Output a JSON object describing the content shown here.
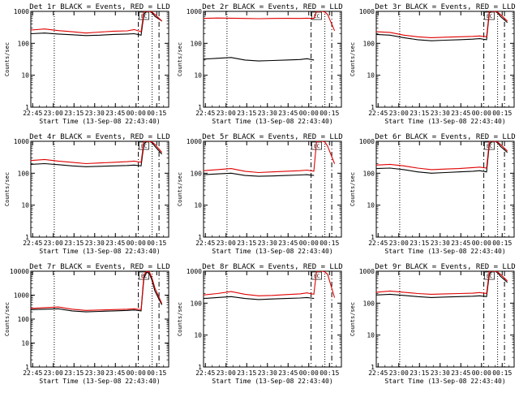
{
  "figure": {
    "xlabel": "Start Time (13-Sep-08 22:43:40)",
    "ylabel": "Counts/sec",
    "x_tick_labels": [
      "22:45",
      "23:00",
      "23:15",
      "23:30",
      "23:45",
      "00:00",
      "00:15"
    ],
    "annotation": "EC",
    "colors": {
      "events": "#000000",
      "lld": "#e00000",
      "axes": "#000000",
      "background": "#ffffff"
    }
  },
  "chart_data": [
    {
      "type": "line",
      "title": "Det 1r BLACK = Events, RED = LLD",
      "xlabel": "Start Time (13-Sep-08 22:43:40)",
      "ylabel": "Counts/sec",
      "x_unit": "minutes after 22:43:40",
      "xlim": [
        0,
        100
      ],
      "ylim": [
        1,
        1000
      ],
      "yscale": "log",
      "y_tick_labels": [
        "1",
        "10",
        "100",
        "1000"
      ],
      "series": [
        {
          "name": "BLACK = Events",
          "color": "#000000",
          "x": [
            0,
            10,
            20,
            30,
            40,
            50,
            60,
            70,
            75,
            80,
            82,
            84,
            86,
            88,
            90,
            95
          ],
          "y": [
            200,
            210,
            195,
            185,
            175,
            180,
            190,
            195,
            200,
            180,
            800,
            1000,
            1000,
            900,
            700,
            500
          ]
        },
        {
          "name": "RED = LLD",
          "color": "#e00000",
          "x": [
            0,
            10,
            20,
            30,
            40,
            50,
            60,
            70,
            75,
            80,
            82,
            84,
            86,
            88,
            90,
            95
          ],
          "y": [
            260,
            280,
            250,
            230,
            210,
            225,
            240,
            245,
            270,
            230,
            1000,
            1000,
            1000,
            950,
            800,
            500
          ]
        }
      ],
      "vlines_dotted": [
        17,
        88
      ],
      "vlines_dashed": [
        78,
        93
      ]
    },
    {
      "type": "line",
      "title": "Det 2r BLACK = Events, RED = LLD",
      "xlabel": "Start Time (13-Sep-08 22:43:40)",
      "ylabel": "Counts/sec",
      "x_unit": "minutes after 22:43:40",
      "xlim": [
        0,
        100
      ],
      "ylim": [
        1,
        1000
      ],
      "yscale": "log",
      "y_tick_labels": [
        "1",
        "10",
        "100",
        "1000"
      ],
      "series": [
        {
          "name": "BLACK = Events",
          "color": "#000000",
          "x": [
            0,
            10,
            20,
            30,
            40,
            50,
            60,
            70,
            75,
            80
          ],
          "y": [
            32,
            34,
            36,
            30,
            28,
            29,
            30,
            31,
            33,
            30
          ]
        },
        {
          "name": "RED = LLD",
          "color": "#e00000",
          "x": [
            0,
            10,
            20,
            30,
            40,
            50,
            60,
            70,
            75,
            80,
            82,
            84,
            86,
            88,
            90,
            95
          ],
          "y": [
            600,
            620,
            610,
            600,
            590,
            600,
            605,
            600,
            610,
            600,
            1000,
            1000,
            1000,
            950,
            800,
            250
          ]
        }
      ],
      "vlines_dotted": [
        17,
        88
      ],
      "vlines_dashed": [
        78,
        93
      ]
    },
    {
      "type": "line",
      "title": "Det 3r BLACK = Events, RED = LLD",
      "xlabel": "Start Time (13-Sep-08 22:43:40)",
      "ylabel": "Counts/sec",
      "x_unit": "minutes after 22:43:40",
      "xlim": [
        0,
        100
      ],
      "ylim": [
        1,
        1000
      ],
      "yscale": "log",
      "y_tick_labels": [
        "1",
        "10",
        "100",
        "1000"
      ],
      "series": [
        {
          "name": "BLACK = Events",
          "color": "#000000",
          "x": [
            0,
            10,
            20,
            30,
            40,
            50,
            60,
            70,
            75,
            80,
            82,
            84,
            86,
            88,
            90,
            95
          ],
          "y": [
            190,
            180,
            150,
            130,
            120,
            125,
            130,
            135,
            140,
            130,
            900,
            1000,
            1000,
            900,
            700,
            450
          ]
        },
        {
          "name": "RED = LLD",
          "color": "#e00000",
          "x": [
            0,
            10,
            20,
            30,
            40,
            50,
            60,
            70,
            75,
            80,
            82,
            84,
            86,
            88,
            90,
            95
          ],
          "y": [
            230,
            220,
            180,
            160,
            150,
            155,
            160,
            165,
            170,
            160,
            1000,
            1000,
            1000,
            950,
            800,
            500
          ]
        }
      ],
      "vlines_dotted": [
        17,
        88
      ],
      "vlines_dashed": [
        78,
        93
      ]
    },
    {
      "type": "line",
      "title": "Det 4r BLACK = Events, RED = LLD",
      "xlabel": "Start Time (13-Sep-08 22:43:40)",
      "ylabel": "Counts/sec",
      "x_unit": "minutes after 22:43:40",
      "xlim": [
        0,
        100
      ],
      "ylim": [
        1,
        1000
      ],
      "yscale": "log",
      "y_tick_labels": [
        "1",
        "10",
        "100",
        "1000"
      ],
      "series": [
        {
          "name": "BLACK = Events",
          "color": "#000000",
          "x": [
            0,
            10,
            20,
            30,
            40,
            50,
            60,
            70,
            75,
            80,
            82,
            84,
            86,
            88,
            90,
            95
          ],
          "y": [
            190,
            200,
            185,
            170,
            160,
            165,
            170,
            175,
            180,
            170,
            800,
            1000,
            1000,
            900,
            700,
            400
          ]
        },
        {
          "name": "RED = LLD",
          "color": "#e00000",
          "x": [
            0,
            10,
            20,
            30,
            40,
            50,
            60,
            70,
            75,
            80,
            82,
            84,
            86,
            88,
            90,
            95
          ],
          "y": [
            250,
            270,
            240,
            220,
            200,
            210,
            220,
            230,
            240,
            220,
            1000,
            1000,
            1000,
            950,
            800,
            450
          ]
        }
      ],
      "vlines_dotted": [
        17,
        88
      ],
      "vlines_dashed": [
        78,
        93
      ]
    },
    {
      "type": "line",
      "title": "Det 5r BLACK = Events, RED = LLD",
      "xlabel": "Start Time (13-Sep-08 22:43:40)",
      "ylabel": "Counts/sec",
      "x_unit": "minutes after 22:43:40",
      "xlim": [
        0,
        100
      ],
      "ylim": [
        1,
        1000
      ],
      "yscale": "log",
      "y_tick_labels": [
        "1",
        "10",
        "100",
        "1000"
      ],
      "series": [
        {
          "name": "BLACK = Events",
          "color": "#000000",
          "x": [
            0,
            10,
            20,
            30,
            40,
            50,
            60,
            70,
            75,
            80
          ],
          "y": [
            90,
            95,
            100,
            85,
            80,
            82,
            85,
            88,
            90,
            85
          ]
        },
        {
          "name": "RED = LLD",
          "color": "#e00000",
          "x": [
            0,
            10,
            20,
            30,
            40,
            50,
            60,
            70,
            75,
            80,
            82,
            84,
            86,
            88,
            90,
            95
          ],
          "y": [
            120,
            130,
            140,
            115,
            105,
            110,
            115,
            120,
            125,
            115,
            1000,
            1000,
            1000,
            950,
            700,
            200
          ]
        }
      ],
      "vlines_dotted": [
        17,
        88
      ],
      "vlines_dashed": [
        78,
        93
      ]
    },
    {
      "type": "line",
      "title": "Det 6r BLACK = Events, RED = LLD",
      "xlabel": "Start Time (13-Sep-08 22:43:40)",
      "ylabel": "Counts/sec",
      "x_unit": "minutes after 22:43:40",
      "xlim": [
        0,
        100
      ],
      "ylim": [
        1,
        1000
      ],
      "yscale": "log",
      "y_tick_labels": [
        "1",
        "10",
        "100",
        "1000"
      ],
      "series": [
        {
          "name": "BLACK = Events",
          "color": "#000000",
          "x": [
            0,
            10,
            20,
            30,
            40,
            50,
            60,
            70,
            75,
            80,
            82,
            84,
            86,
            88,
            90,
            95
          ],
          "y": [
            140,
            145,
            130,
            110,
            100,
            105,
            110,
            115,
            120,
            110,
            800,
            1000,
            1000,
            900,
            700,
            450
          ]
        },
        {
          "name": "RED = LLD",
          "color": "#e00000",
          "x": [
            0,
            10,
            20,
            30,
            40,
            50,
            60,
            70,
            75,
            80,
            82,
            84,
            86,
            88,
            90,
            95
          ],
          "y": [
            180,
            190,
            170,
            145,
            130,
            135,
            140,
            150,
            155,
            145,
            1000,
            1000,
            1000,
            950,
            800,
            500
          ]
        }
      ],
      "vlines_dotted": [
        17,
        88
      ],
      "vlines_dashed": [
        78,
        93
      ]
    },
    {
      "type": "line",
      "title": "Det 7r BLACK = Events, RED = LLD",
      "xlabel": "Start Time (13-Sep-08 22:43:40)",
      "ylabel": "Counts/sec",
      "x_unit": "minutes after 22:43:40",
      "xlim": [
        0,
        100
      ],
      "ylim": [
        1,
        10000
      ],
      "yscale": "log",
      "y_tick_labels": [
        "1",
        "10",
        "100",
        "1000",
        "10000"
      ],
      "series": [
        {
          "name": "BLACK = Events",
          "color": "#000000",
          "x": [
            0,
            10,
            20,
            30,
            40,
            50,
            60,
            70,
            75,
            80,
            82,
            84,
            86,
            88,
            90,
            95
          ],
          "y": [
            250,
            260,
            270,
            220,
            200,
            210,
            220,
            230,
            240,
            220,
            5000,
            9000,
            8000,
            4000,
            1500,
            400
          ]
        },
        {
          "name": "RED = LLD",
          "color": "#e00000",
          "x": [
            0,
            10,
            20,
            30,
            40,
            50,
            60,
            70,
            75,
            80,
            82,
            84,
            86,
            88,
            90,
            95
          ],
          "y": [
            280,
            300,
            320,
            260,
            230,
            240,
            250,
            260,
            270,
            250,
            7000,
            10000,
            9500,
            5000,
            2000,
            450
          ]
        }
      ],
      "vlines_dotted": [
        17,
        88
      ],
      "vlines_dashed": [
        78,
        93
      ]
    },
    {
      "type": "line",
      "title": "Det 8r BLACK = Events, RED = LLD",
      "xlabel": "Start Time (13-Sep-08 22:43:40)",
      "ylabel": "Counts/sec",
      "x_unit": "minutes after 22:43:40",
      "xlim": [
        0,
        100
      ],
      "ylim": [
        1,
        1000
      ],
      "yscale": "log",
      "y_tick_labels": [
        "1",
        "10",
        "100",
        "1000"
      ],
      "series": [
        {
          "name": "BLACK = Events",
          "color": "#000000",
          "x": [
            0,
            10,
            20,
            30,
            40,
            50,
            60,
            70,
            75,
            80
          ],
          "y": [
            140,
            150,
            160,
            140,
            130,
            135,
            140,
            145,
            150,
            140
          ]
        },
        {
          "name": "RED = LLD",
          "color": "#e00000",
          "x": [
            0,
            10,
            20,
            30,
            40,
            50,
            60,
            70,
            75,
            80,
            82,
            84,
            86,
            88,
            90,
            95
          ],
          "y": [
            180,
            200,
            230,
            190,
            170,
            175,
            185,
            195,
            210,
            190,
            1000,
            1000,
            1000,
            950,
            800,
            150
          ]
        }
      ],
      "vlines_dotted": [
        17,
        88
      ],
      "vlines_dashed": [
        78,
        93
      ]
    },
    {
      "type": "line",
      "title": "Det 9r BLACK = Events, RED = LLD",
      "xlabel": "Start Time (13-Sep-08 22:43:40)",
      "ylabel": "Counts/sec",
      "x_unit": "minutes after 22:43:40",
      "xlim": [
        0,
        100
      ],
      "ylim": [
        1,
        1000
      ],
      "yscale": "log",
      "y_tick_labels": [
        "1",
        "10",
        "100",
        "1000"
      ],
      "series": [
        {
          "name": "BLACK = Events",
          "color": "#000000",
          "x": [
            0,
            10,
            20,
            30,
            40,
            50,
            60,
            70,
            75,
            80,
            82,
            84,
            86,
            88,
            90,
            95
          ],
          "y": [
            180,
            190,
            175,
            160,
            150,
            155,
            160,
            165,
            170,
            160,
            800,
            1000,
            1000,
            900,
            700,
            450
          ]
        },
        {
          "name": "RED = LLD",
          "color": "#e00000",
          "x": [
            0,
            10,
            20,
            30,
            40,
            50,
            60,
            70,
            75,
            80,
            82,
            84,
            86,
            88,
            90,
            95
          ],
          "y": [
            220,
            240,
            220,
            200,
            190,
            195,
            200,
            205,
            215,
            200,
            1000,
            1000,
            1000,
            950,
            800,
            500
          ]
        }
      ],
      "vlines_dotted": [
        17,
        88
      ],
      "vlines_dashed": [
        78,
        93
      ]
    }
  ]
}
